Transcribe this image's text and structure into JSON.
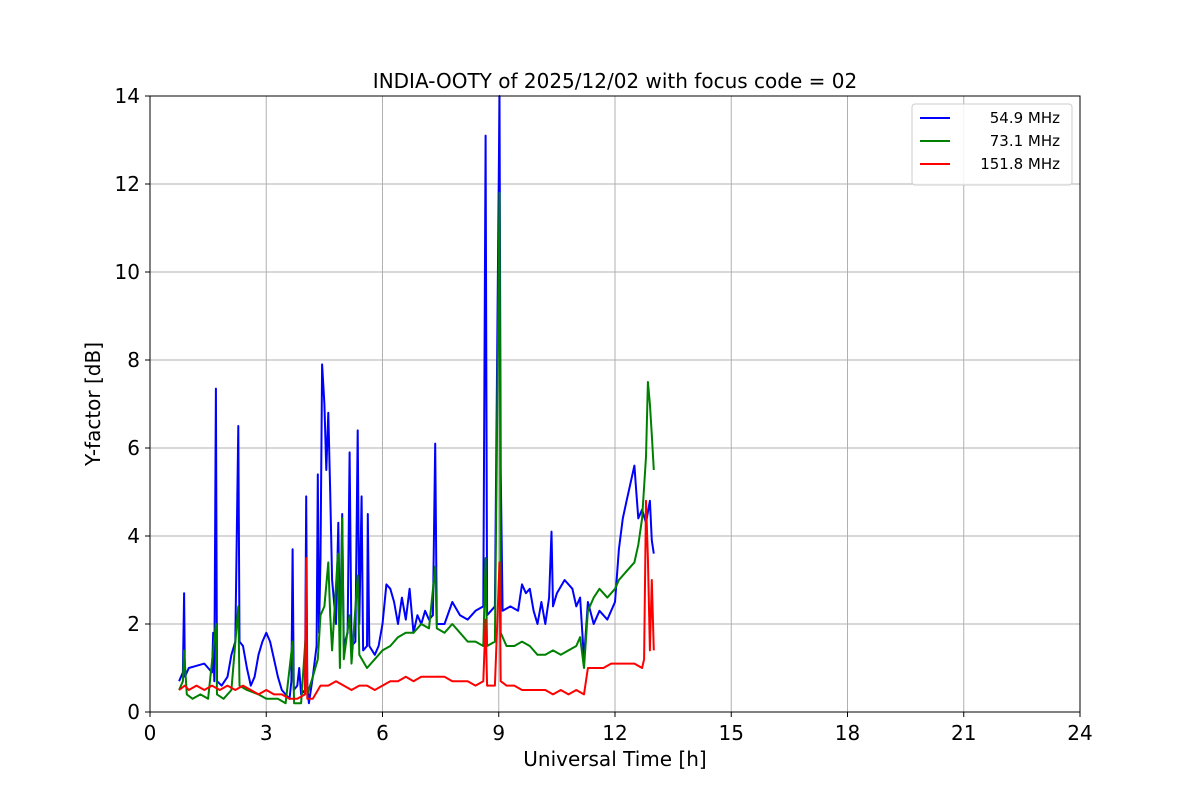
{
  "chart_data": {
    "type": "line",
    "title": "INDIA-OOTY of 2025/12/02 with focus code = 02",
    "xlabel": "Universal Time [h]",
    "ylabel": "Y-factor [dB]",
    "xlim": [
      0,
      24
    ],
    "ylim": [
      0,
      14
    ],
    "xticks": [
      "0",
      "3",
      "6",
      "9",
      "12",
      "15",
      "18",
      "21",
      "24"
    ],
    "yticks": [
      "0",
      "2",
      "4",
      "6",
      "8",
      "10",
      "12",
      "14"
    ],
    "grid": true,
    "legend_position": "top-right",
    "series": [
      {
        "name": "54.9 MHz",
        "color": "#0000ff",
        "points": [
          [
            0.75,
            0.7
          ],
          [
            0.85,
            0.9
          ],
          [
            0.88,
            2.7
          ],
          [
            0.9,
            0.8
          ],
          [
            1.0,
            1.0
          ],
          [
            1.2,
            1.05
          ],
          [
            1.4,
            1.1
          ],
          [
            1.6,
            0.9
          ],
          [
            1.63,
            1.8
          ],
          [
            1.66,
            0.7
          ],
          [
            1.7,
            7.35
          ],
          [
            1.73,
            0.7
          ],
          [
            1.85,
            0.6
          ],
          [
            2.0,
            0.8
          ],
          [
            2.1,
            1.3
          ],
          [
            2.2,
            1.6
          ],
          [
            2.28,
            6.5
          ],
          [
            2.31,
            1.6
          ],
          [
            2.4,
            1.5
          ],
          [
            2.5,
            1.0
          ],
          [
            2.6,
            0.6
          ],
          [
            2.7,
            0.8
          ],
          [
            2.8,
            1.3
          ],
          [
            2.9,
            1.6
          ],
          [
            3.0,
            1.8
          ],
          [
            3.1,
            1.6
          ],
          [
            3.2,
            1.2
          ],
          [
            3.3,
            0.8
          ],
          [
            3.4,
            0.5
          ],
          [
            3.5,
            0.4
          ],
          [
            3.6,
            0.3
          ],
          [
            3.65,
            0.7
          ],
          [
            3.68,
            3.7
          ],
          [
            3.71,
            0.5
          ],
          [
            3.8,
            0.6
          ],
          [
            3.85,
            1.0
          ],
          [
            3.9,
            0.4
          ],
          [
            4.0,
            0.5
          ],
          [
            4.03,
            4.9
          ],
          [
            4.06,
            0.6
          ],
          [
            4.1,
            0.2
          ],
          [
            4.2,
            0.8
          ],
          [
            4.3,
            1.5
          ],
          [
            4.33,
            5.4
          ],
          [
            4.36,
            1.8
          ],
          [
            4.4,
            3.5
          ],
          [
            4.44,
            7.9
          ],
          [
            4.5,
            7.0
          ],
          [
            4.55,
            5.5
          ],
          [
            4.6,
            6.8
          ],
          [
            4.65,
            5.0
          ],
          [
            4.7,
            3.0
          ],
          [
            4.8,
            2.0
          ],
          [
            4.86,
            4.3
          ],
          [
            4.9,
            1.5
          ],
          [
            4.96,
            4.5
          ],
          [
            5.0,
            1.5
          ],
          [
            5.1,
            1.8
          ],
          [
            5.15,
            5.9
          ],
          [
            5.2,
            1.5
          ],
          [
            5.3,
            1.6
          ],
          [
            5.36,
            6.4
          ],
          [
            5.4,
            2.0
          ],
          [
            5.46,
            4.9
          ],
          [
            5.5,
            1.4
          ],
          [
            5.6,
            1.5
          ],
          [
            5.62,
            4.5
          ],
          [
            5.66,
            1.5
          ],
          [
            5.8,
            1.3
          ],
          [
            5.9,
            1.5
          ],
          [
            6.0,
            2.0
          ],
          [
            6.1,
            2.9
          ],
          [
            6.2,
            2.8
          ],
          [
            6.3,
            2.5
          ],
          [
            6.4,
            2.0
          ],
          [
            6.5,
            2.6
          ],
          [
            6.6,
            2.1
          ],
          [
            6.7,
            2.8
          ],
          [
            6.8,
            1.8
          ],
          [
            6.9,
            2.2
          ],
          [
            7.0,
            2.0
          ],
          [
            7.1,
            2.3
          ],
          [
            7.2,
            2.1
          ],
          [
            7.3,
            2.2
          ],
          [
            7.36,
            6.1
          ],
          [
            7.4,
            2.0
          ],
          [
            7.6,
            2.0
          ],
          [
            7.8,
            2.5
          ],
          [
            8.0,
            2.2
          ],
          [
            8.2,
            2.1
          ],
          [
            8.4,
            2.3
          ],
          [
            8.6,
            2.4
          ],
          [
            8.66,
            13.1
          ],
          [
            8.7,
            2.2
          ],
          [
            8.9,
            2.4
          ],
          [
            9.02,
            14.0
          ],
          [
            9.05,
            5.5
          ],
          [
            9.1,
            2.3
          ],
          [
            9.3,
            2.4
          ],
          [
            9.5,
            2.3
          ],
          [
            9.6,
            2.9
          ],
          [
            9.7,
            2.7
          ],
          [
            9.8,
            2.8
          ],
          [
            9.9,
            2.3
          ],
          [
            10.0,
            2.0
          ],
          [
            10.1,
            2.5
          ],
          [
            10.2,
            2.0
          ],
          [
            10.3,
            2.6
          ],
          [
            10.36,
            4.1
          ],
          [
            10.4,
            2.4
          ],
          [
            10.5,
            2.7
          ],
          [
            10.7,
            3.0
          ],
          [
            10.9,
            2.8
          ],
          [
            11.0,
            2.4
          ],
          [
            11.1,
            2.6
          ],
          [
            11.2,
            1.2
          ],
          [
            11.3,
            2.5
          ],
          [
            11.45,
            2.0
          ],
          [
            11.6,
            2.3
          ],
          [
            11.8,
            2.1
          ],
          [
            12.0,
            2.5
          ],
          [
            12.1,
            3.7
          ],
          [
            12.2,
            4.4
          ],
          [
            12.3,
            4.8
          ],
          [
            12.4,
            5.2
          ],
          [
            12.5,
            5.6
          ],
          [
            12.55,
            5.0
          ],
          [
            12.6,
            4.4
          ],
          [
            12.7,
            4.6
          ],
          [
            12.8,
            4.3
          ],
          [
            12.9,
            4.8
          ],
          [
            12.95,
            3.9
          ],
          [
            13.0,
            3.6
          ]
        ]
      },
      {
        "name": "73.1 MHz",
        "color": "#008000",
        "points": [
          [
            0.75,
            0.5
          ],
          [
            0.85,
            0.7
          ],
          [
            0.88,
            1.4
          ],
          [
            0.95,
            0.4
          ],
          [
            1.1,
            0.3
          ],
          [
            1.3,
            0.4
          ],
          [
            1.5,
            0.3
          ],
          [
            1.7,
            2.0
          ],
          [
            1.73,
            0.4
          ],
          [
            1.9,
            0.3
          ],
          [
            2.1,
            0.5
          ],
          [
            2.28,
            2.4
          ],
          [
            2.31,
            0.6
          ],
          [
            2.5,
            0.5
          ],
          [
            2.8,
            0.4
          ],
          [
            3.0,
            0.3
          ],
          [
            3.3,
            0.3
          ],
          [
            3.5,
            0.2
          ],
          [
            3.68,
            1.6
          ],
          [
            3.72,
            0.2
          ],
          [
            3.9,
            0.2
          ],
          [
            4.03,
            1.9
          ],
          [
            4.06,
            0.4
          ],
          [
            4.2,
            0.8
          ],
          [
            4.33,
            1.2
          ],
          [
            4.4,
            2.2
          ],
          [
            4.5,
            2.4
          ],
          [
            4.6,
            3.4
          ],
          [
            4.65,
            2.2
          ],
          [
            4.7,
            1.4
          ],
          [
            4.85,
            3.6
          ],
          [
            4.9,
            1.0
          ],
          [
            4.96,
            4.4
          ],
          [
            5.0,
            1.2
          ],
          [
            5.15,
            2.2
          ],
          [
            5.2,
            1.1
          ],
          [
            5.36,
            3.1
          ],
          [
            5.4,
            1.3
          ],
          [
            5.6,
            1.0
          ],
          [
            5.8,
            1.2
          ],
          [
            6.0,
            1.4
          ],
          [
            6.2,
            1.5
          ],
          [
            6.4,
            1.7
          ],
          [
            6.6,
            1.8
          ],
          [
            6.8,
            1.8
          ],
          [
            7.0,
            2.0
          ],
          [
            7.2,
            1.9
          ],
          [
            7.36,
            3.3
          ],
          [
            7.4,
            1.9
          ],
          [
            7.6,
            1.8
          ],
          [
            7.8,
            2.0
          ],
          [
            8.0,
            1.8
          ],
          [
            8.2,
            1.6
          ],
          [
            8.4,
            1.6
          ],
          [
            8.6,
            1.5
          ],
          [
            8.66,
            3.5
          ],
          [
            8.7,
            1.5
          ],
          [
            8.9,
            1.6
          ],
          [
            9.02,
            11.8
          ],
          [
            9.05,
            1.8
          ],
          [
            9.2,
            1.5
          ],
          [
            9.4,
            1.5
          ],
          [
            9.6,
            1.6
          ],
          [
            9.8,
            1.5
          ],
          [
            10.0,
            1.3
          ],
          [
            10.2,
            1.3
          ],
          [
            10.4,
            1.4
          ],
          [
            10.6,
            1.3
          ],
          [
            10.8,
            1.4
          ],
          [
            11.0,
            1.5
          ],
          [
            11.1,
            1.7
          ],
          [
            11.2,
            1.0
          ],
          [
            11.3,
            2.3
          ],
          [
            11.45,
            2.6
          ],
          [
            11.6,
            2.8
          ],
          [
            11.8,
            2.6
          ],
          [
            12.0,
            2.8
          ],
          [
            12.1,
            3.0
          ],
          [
            12.3,
            3.2
          ],
          [
            12.5,
            3.4
          ],
          [
            12.6,
            3.8
          ],
          [
            12.7,
            4.4
          ],
          [
            12.8,
            5.8
          ],
          [
            12.85,
            7.5
          ],
          [
            12.9,
            7.0
          ],
          [
            12.95,
            6.3
          ],
          [
            13.0,
            5.5
          ]
        ]
      },
      {
        "name": "151.8 MHz",
        "color": "#ff0000",
        "points": [
          [
            0.75,
            0.5
          ],
          [
            0.9,
            0.6
          ],
          [
            1.0,
            0.5
          ],
          [
            1.2,
            0.6
          ],
          [
            1.4,
            0.5
          ],
          [
            1.6,
            0.6
          ],
          [
            1.8,
            0.5
          ],
          [
            2.0,
            0.6
          ],
          [
            2.2,
            0.5
          ],
          [
            2.4,
            0.6
          ],
          [
            2.6,
            0.5
          ],
          [
            2.8,
            0.4
          ],
          [
            3.0,
            0.5
          ],
          [
            3.2,
            0.4
          ],
          [
            3.4,
            0.4
          ],
          [
            3.6,
            0.3
          ],
          [
            3.8,
            0.3
          ],
          [
            4.0,
            0.4
          ],
          [
            4.03,
            3.5
          ],
          [
            4.06,
            0.3
          ],
          [
            4.2,
            0.3
          ],
          [
            4.4,
            0.6
          ],
          [
            4.6,
            0.6
          ],
          [
            4.8,
            0.7
          ],
          [
            5.0,
            0.6
          ],
          [
            5.2,
            0.5
          ],
          [
            5.4,
            0.6
          ],
          [
            5.6,
            0.6
          ],
          [
            5.8,
            0.5
          ],
          [
            6.0,
            0.6
          ],
          [
            6.2,
            0.7
          ],
          [
            6.4,
            0.7
          ],
          [
            6.6,
            0.8
          ],
          [
            6.8,
            0.7
          ],
          [
            7.0,
            0.8
          ],
          [
            7.2,
            0.8
          ],
          [
            7.4,
            0.8
          ],
          [
            7.6,
            0.8
          ],
          [
            7.8,
            0.7
          ],
          [
            8.0,
            0.7
          ],
          [
            8.2,
            0.7
          ],
          [
            8.4,
            0.6
          ],
          [
            8.6,
            0.7
          ],
          [
            8.66,
            2.1
          ],
          [
            8.7,
            0.6
          ],
          [
            8.9,
            0.6
          ],
          [
            9.02,
            3.4
          ],
          [
            9.05,
            0.7
          ],
          [
            9.2,
            0.6
          ],
          [
            9.4,
            0.6
          ],
          [
            9.6,
            0.5
          ],
          [
            9.8,
            0.5
          ],
          [
            10.0,
            0.5
          ],
          [
            10.2,
            0.5
          ],
          [
            10.4,
            0.4
          ],
          [
            10.6,
            0.5
          ],
          [
            10.8,
            0.4
          ],
          [
            11.0,
            0.5
          ],
          [
            11.2,
            0.4
          ],
          [
            11.3,
            1.0
          ],
          [
            11.5,
            1.0
          ],
          [
            11.7,
            1.0
          ],
          [
            11.9,
            1.1
          ],
          [
            12.1,
            1.1
          ],
          [
            12.3,
            1.1
          ],
          [
            12.5,
            1.1
          ],
          [
            12.7,
            1.0
          ],
          [
            12.75,
            1.2
          ],
          [
            12.8,
            4.8
          ],
          [
            12.85,
            3.5
          ],
          [
            12.9,
            1.4
          ],
          [
            12.95,
            3.0
          ],
          [
            13.0,
            1.4
          ]
        ]
      }
    ]
  }
}
